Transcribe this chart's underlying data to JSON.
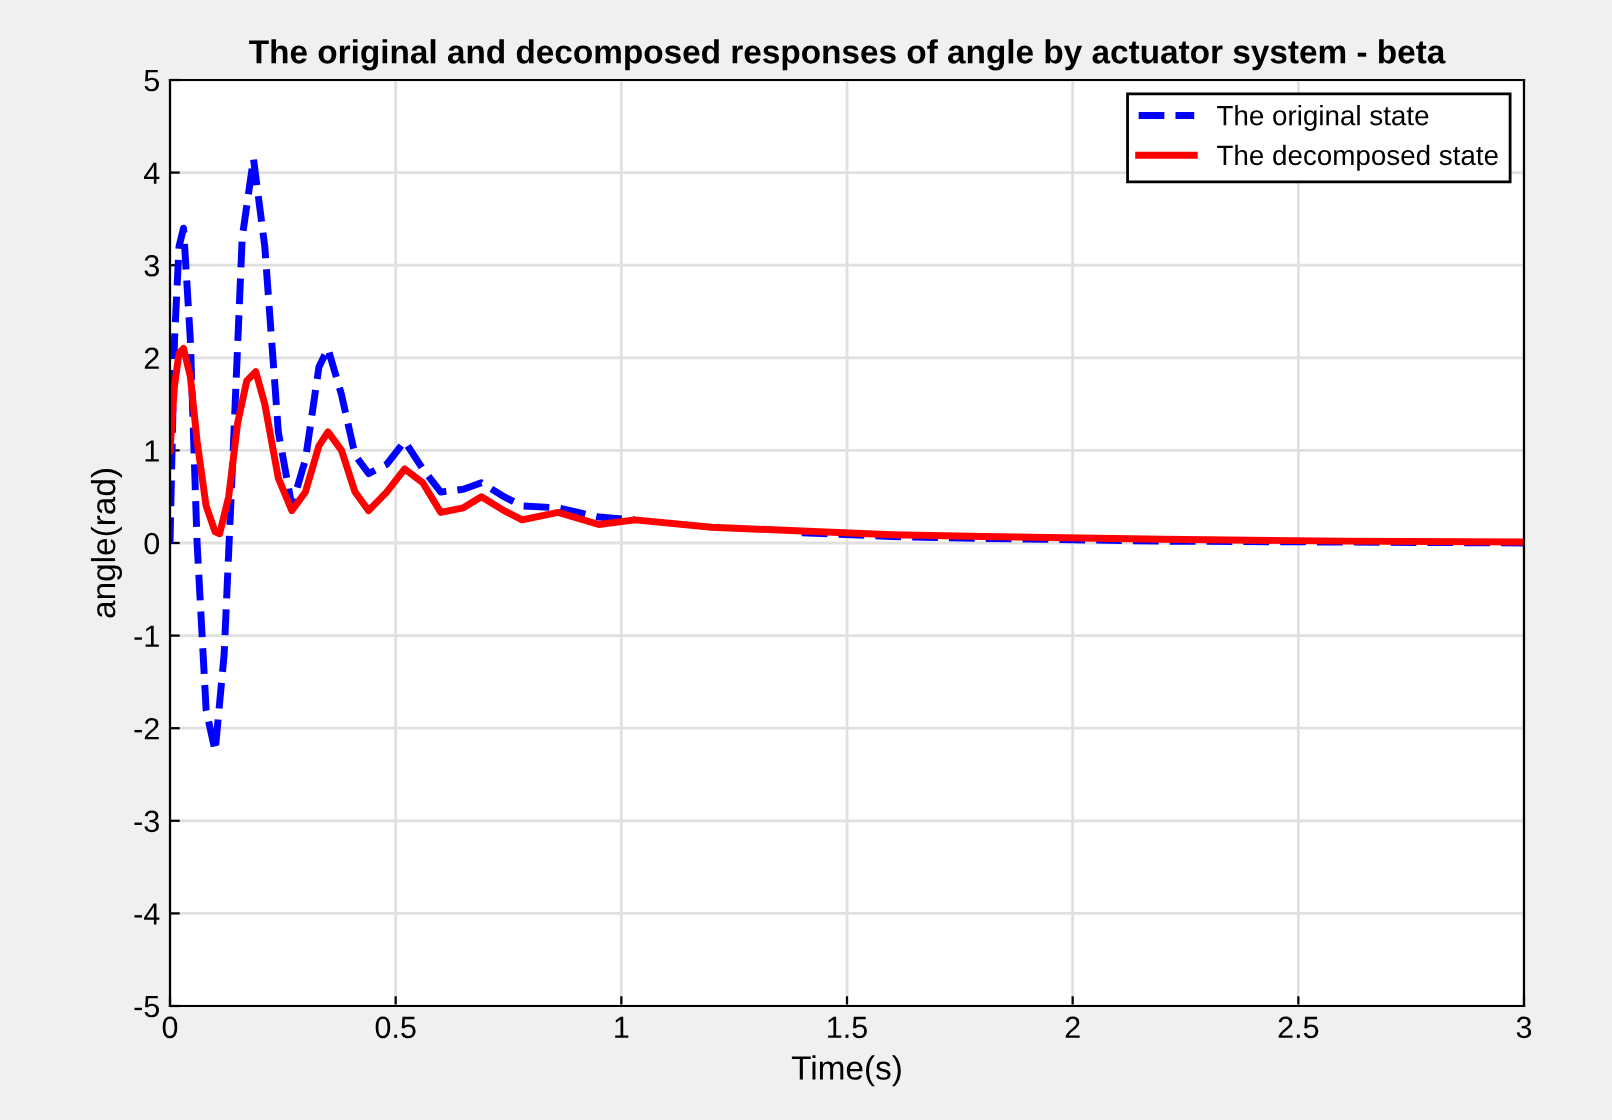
{
  "chart_data": {
    "type": "line",
    "title": "The original and decomposed responses of angle by actuator system - beta",
    "xlabel": "Time(s)",
    "ylabel": "angle(rad)",
    "xlim": [
      0,
      3
    ],
    "ylim": [
      -5,
      5
    ],
    "xticks": [
      0,
      0.5,
      1,
      1.5,
      2,
      2.5,
      3
    ],
    "yticks": [
      -5,
      -4,
      -3,
      -2,
      -1,
      0,
      1,
      2,
      3,
      4,
      5
    ],
    "grid": true,
    "legend": "top right",
    "series": [
      {
        "name": "The original state",
        "color": "#0000ff",
        "line_style": "dashed",
        "x": [
          0,
          0.01,
          0.02,
          0.03,
          0.045,
          0.06,
          0.08,
          0.1,
          0.12,
          0.14,
          0.16,
          0.185,
          0.21,
          0.24,
          0.27,
          0.3,
          0.33,
          0.35,
          0.38,
          0.41,
          0.44,
          0.48,
          0.52,
          0.56,
          0.6,
          0.65,
          0.69,
          0.74,
          0.78,
          0.86,
          0.95,
          1.03,
          1.2,
          1.4,
          1.6,
          1.8,
          2.2,
          2.6,
          3.0
        ],
        "values": [
          0,
          2.2,
          3.2,
          3.4,
          2.2,
          0,
          -1.8,
          -2.25,
          -1.2,
          1.0,
          3.3,
          4.15,
          3.2,
          1.2,
          0.4,
          0.9,
          1.9,
          2.1,
          1.6,
          0.95,
          0.75,
          0.85,
          1.1,
          0.8,
          0.55,
          0.58,
          0.65,
          0.5,
          0.4,
          0.38,
          0.28,
          0.25,
          null,
          0.11,
          0.07,
          0.05,
          0.02,
          0.01,
          0.0
        ]
      },
      {
        "name": "The decomposed state",
        "color": "#ff0000",
        "line_style": "solid",
        "x": [
          0,
          0.01,
          0.02,
          0.03,
          0.045,
          0.06,
          0.08,
          0.1,
          0.11,
          0.13,
          0.15,
          0.17,
          0.19,
          0.21,
          0.24,
          0.27,
          0.3,
          0.33,
          0.35,
          0.38,
          0.41,
          0.44,
          0.48,
          0.52,
          0.56,
          0.6,
          0.65,
          0.69,
          0.74,
          0.78,
          0.86,
          0.95,
          1.03,
          1.2,
          1.4,
          1.6,
          1.8,
          2.2,
          2.6,
          3.0
        ],
        "values": [
          1.0,
          1.7,
          2.05,
          2.1,
          1.8,
          1.1,
          0.4,
          0.12,
          0.1,
          0.5,
          1.3,
          1.75,
          1.85,
          1.5,
          0.7,
          0.35,
          0.55,
          1.05,
          1.2,
          1.0,
          0.55,
          0.35,
          0.55,
          0.8,
          0.65,
          0.33,
          0.38,
          0.5,
          0.35,
          0.25,
          0.33,
          0.2,
          0.25,
          0.17,
          0.13,
          0.09,
          0.07,
          0.04,
          0.02,
          0.01
        ]
      }
    ]
  }
}
